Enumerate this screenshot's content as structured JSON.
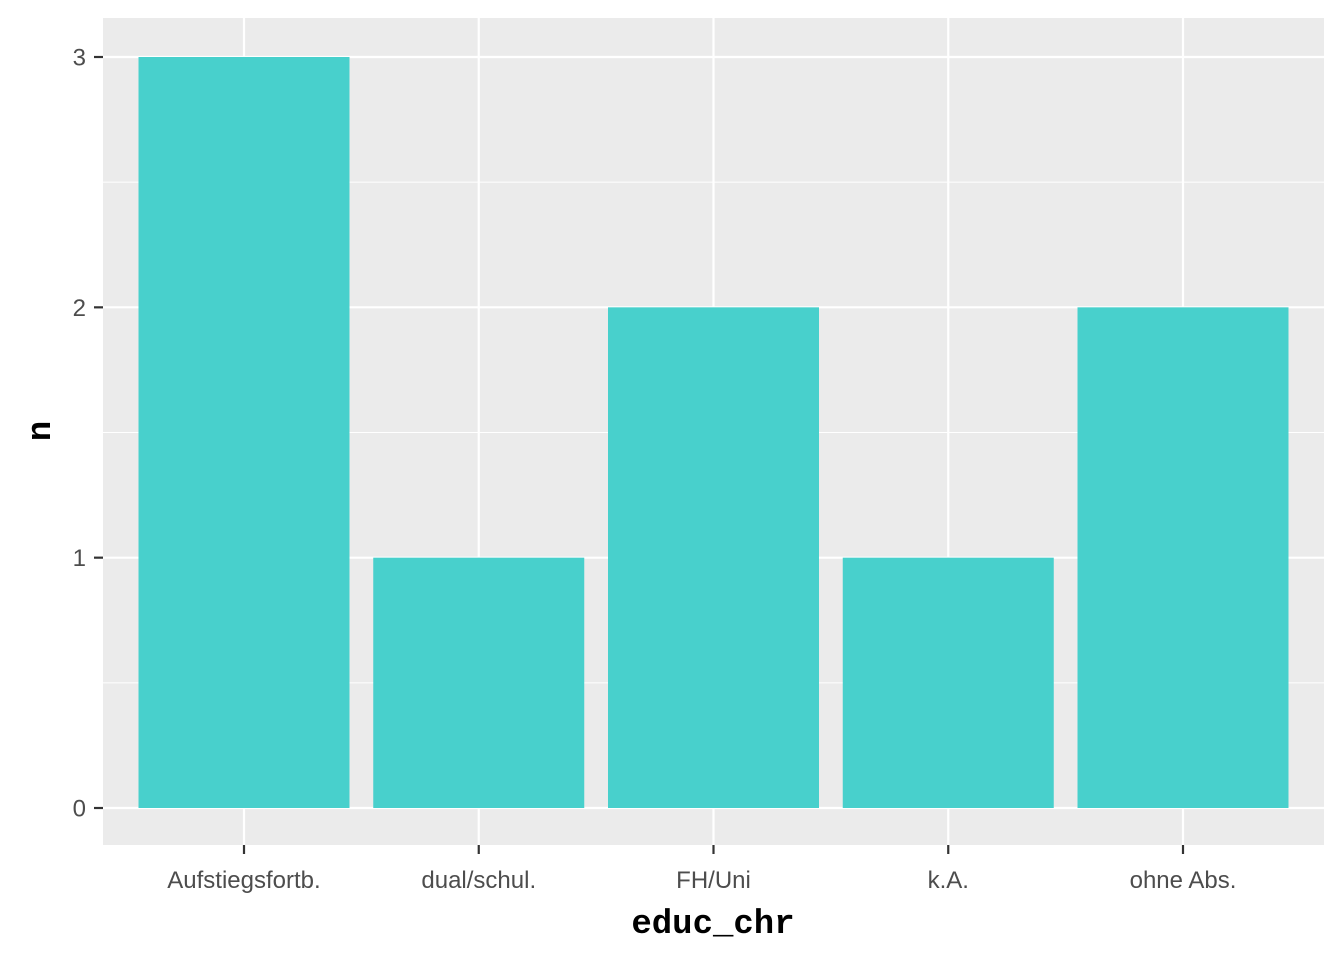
{
  "chart_data": {
    "type": "bar",
    "categories": [
      "Aufstiegsfortb.",
      "dual/schul.",
      "FH/Uni",
      "k.A.",
      "ohne Abs."
    ],
    "values": [
      3,
      1,
      2,
      1,
      2
    ],
    "title": "",
    "xlabel": "educ_chr",
    "ylabel": "n",
    "ylim": [
      0,
      3
    ],
    "yticks": [
      "0",
      "1",
      "2",
      "3"
    ],
    "grid": true,
    "legend": "none",
    "colors": {
      "bar": "#48D0CC",
      "panel": "#EBEBEB",
      "grid": "#FFFFFF",
      "tick": "#333333"
    }
  }
}
